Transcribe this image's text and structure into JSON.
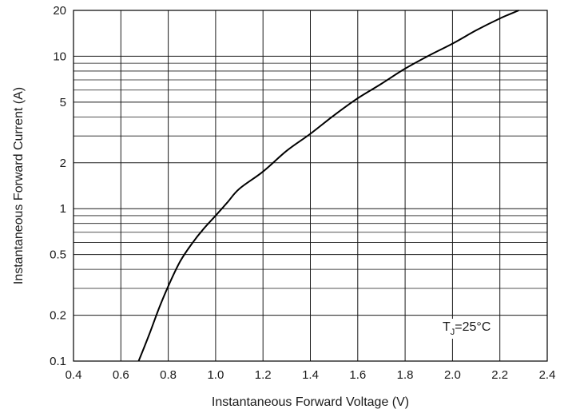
{
  "chart_data": {
    "type": "line",
    "title": "",
    "xlabel": "Instantaneous Forward Voltage (V)",
    "ylabel": "Instantaneous Forward Current (A)",
    "xlim": [
      0.4,
      2.4
    ],
    "ylim": [
      0.1,
      20
    ],
    "y_scale": "log",
    "x_ticks": [
      "0.4",
      "0.6",
      "0.8",
      "1.0",
      "1.2",
      "1.4",
      "1.6",
      "1.8",
      "2.0",
      "2.2",
      "2.4"
    ],
    "y_ticks": [
      "0.1",
      "0.2",
      "0.5",
      "1",
      "2",
      "5",
      "10",
      "20"
    ],
    "grid": true,
    "annotation": {
      "main": "T",
      "sub": "J",
      "rest": "=25°C"
    },
    "series": [
      {
        "x": [
          0.675,
          0.72,
          0.76,
          0.8,
          0.85,
          0.9,
          0.95,
          1.0,
          1.05,
          1.1,
          1.2,
          1.3,
          1.4,
          1.5,
          1.6,
          1.7,
          1.8,
          1.9,
          2.0,
          2.1,
          2.2,
          2.28
        ],
        "y": [
          0.1,
          0.15,
          0.22,
          0.31,
          0.45,
          0.59,
          0.74,
          0.9,
          1.1,
          1.35,
          1.75,
          2.4,
          3.1,
          4.1,
          5.3,
          6.6,
          8.3,
          10.1,
          12.1,
          14.8,
          17.7,
          20
        ],
        "color": "#000000"
      }
    ]
  }
}
